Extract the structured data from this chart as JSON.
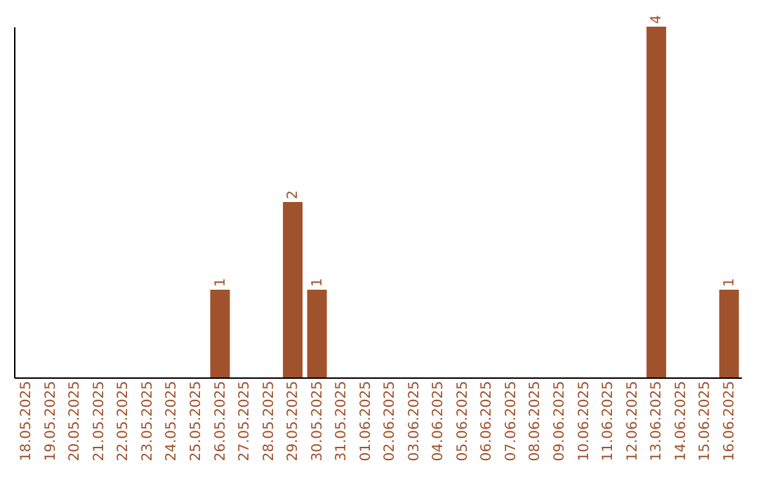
{
  "chart_data": {
    "type": "bar",
    "categories": [
      "18.05.2025",
      "19.05.2025",
      "20.05.2025",
      "21.05.2025",
      "22.05.2025",
      "23.05.2025",
      "24.05.2025",
      "25.05.2025",
      "26.05.2025",
      "27.05.2025",
      "28.05.2025",
      "29.05.2025",
      "30.05.2025",
      "31.05.2025",
      "01.06.2025",
      "02.06.2025",
      "03.06.2025",
      "04.06.2025",
      "05.06.2025",
      "06.06.2025",
      "07.06.2025",
      "08.06.2025",
      "09.06.2025",
      "10.06.2025",
      "11.06.2025",
      "12.06.2025",
      "13.06.2025",
      "14.06.2025",
      "15.06.2025",
      "16.06.2025"
    ],
    "values": [
      0,
      0,
      0,
      0,
      0,
      0,
      0,
      0,
      1,
      0,
      0,
      2,
      1,
      0,
      0,
      0,
      0,
      0,
      0,
      0,
      0,
      0,
      0,
      0,
      0,
      0,
      4,
      0,
      0,
      1
    ],
    "value_labels": [
      null,
      null,
      null,
      null,
      null,
      null,
      null,
      null,
      "1",
      null,
      null,
      "2",
      "1",
      null,
      null,
      null,
      null,
      null,
      null,
      null,
      null,
      null,
      null,
      null,
      null,
      null,
      "4",
      null,
      null,
      "1"
    ],
    "color": "#a0522d",
    "tick_labels": "x",
    "grid": false
  }
}
